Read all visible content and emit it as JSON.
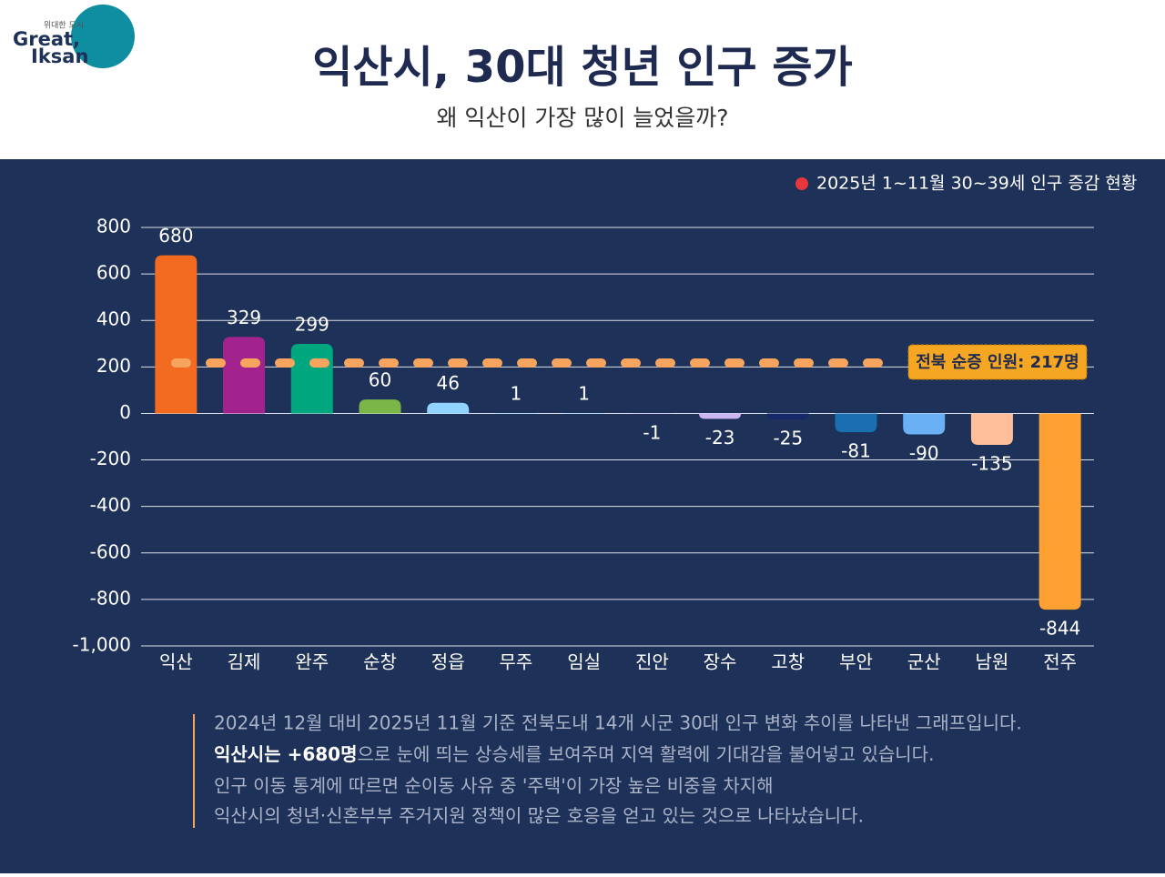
{
  "logo": {
    "tagline": "위대한 도시",
    "line1": "Great,",
    "line2": "Iksan"
  },
  "description": {
    "lines": [
      "2024년 12월 대비 2025년 11월 기준 전북도내 14개 시군 30대 인구 변화 추이를 나타낸 그래프입니다.",
      "인구 이동 통계에 따르면 순이동 사유 중 '주택'이 가장 높은 비중을 차지해",
      "익산시의 청년·신혼부부 주거지원 정책이 많은 호응을 얻고 있는 것으로 나타났습니다."
    ],
    "highlight": "익산시는 +680명",
    "highlight_rest": "으로 눈에 띄는 상승세를 보여주며 지역 활력에 기대감을 불어넣고 있습니다."
  },
  "chart_data": {
    "type": "bar",
    "title": "익산시, 30대 청년 인구 증가",
    "subtitle": "왜 익산이 가장 많이 늘었을까?",
    "legend": "2025년 1~11월 30~39세 인구 증감 현황",
    "legend_color": "#e8363d",
    "legend_position": "top-right",
    "categories": [
      "익산",
      "김제",
      "완주",
      "순창",
      "정읍",
      "무주",
      "임실",
      "진안",
      "장수",
      "고창",
      "부안",
      "군산",
      "남원",
      "전주"
    ],
    "values": [
      680,
      329,
      299,
      60,
      46,
      1,
      1,
      -1,
      -23,
      -25,
      -81,
      -90,
      -135,
      -844
    ],
    "colors": [
      "#f26b21",
      "#a3238e",
      "#00a67e",
      "#7ab648",
      "#8fd3fe",
      "#8fd3fe",
      "#8fd3fe",
      "#c9b6f2",
      "#c9b6f2",
      "#14286a",
      "#1a6fb0",
      "#6ab0f5",
      "#ffbf9b",
      "#ffa033"
    ],
    "ylim": [
      -1000,
      800
    ],
    "yticks": [
      {
        "value": -1000,
        "label": "-1,000"
      },
      -800,
      -600,
      -400,
      -200,
      0,
      200,
      400,
      600,
      800
    ],
    "grid": true,
    "reference_line": {
      "value": 217,
      "label": "전북 순증 인원: 217명",
      "color": "#f6a45e"
    }
  }
}
